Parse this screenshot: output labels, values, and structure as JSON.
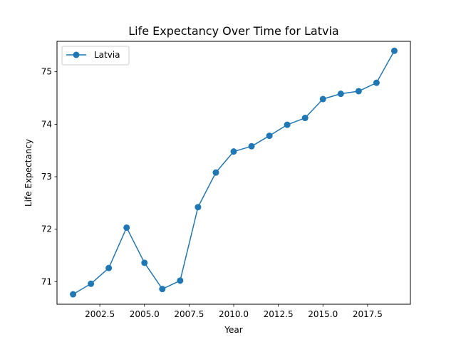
{
  "chart_data": {
    "type": "line",
    "title": "Life Expectancy Over Time for Latvia",
    "xlabel": "Year",
    "ylabel": "Life Expectancy",
    "xlim": [
      2000.1,
      2019.9
    ],
    "ylim": [
      70.57,
      75.58
    ],
    "x_ticks": [
      {
        "value": 2002.5,
        "label": "2002.5"
      },
      {
        "value": 2005.0,
        "label": "2005.0"
      },
      {
        "value": 2007.5,
        "label": "2007.5"
      },
      {
        "value": 2010.0,
        "label": "2010.0"
      },
      {
        "value": 2012.5,
        "label": "2012.5"
      },
      {
        "value": 2015.0,
        "label": "2015.0"
      },
      {
        "value": 2017.5,
        "label": "2017.5"
      }
    ],
    "y_ticks": [
      {
        "value": 71,
        "label": "71"
      },
      {
        "value": 72,
        "label": "72"
      },
      {
        "value": 73,
        "label": "73"
      },
      {
        "value": 74,
        "label": "74"
      },
      {
        "value": 75,
        "label": "75"
      }
    ],
    "grid": false,
    "legend_position": "top-left",
    "series": [
      {
        "name": "Latvia",
        "color": "#1f77b4",
        "marker": "circle",
        "x": [
          2001,
          2002,
          2003,
          2004,
          2005,
          2006,
          2007,
          2008,
          2009,
          2010,
          2011,
          2012,
          2013,
          2014,
          2015,
          2016,
          2017,
          2018,
          2019
        ],
        "y": [
          70.76,
          70.96,
          71.26,
          72.03,
          71.36,
          70.86,
          71.02,
          72.42,
          73.08,
          73.48,
          73.58,
          73.78,
          73.99,
          74.12,
          74.48,
          74.58,
          74.63,
          74.79,
          75.4
        ]
      }
    ]
  }
}
